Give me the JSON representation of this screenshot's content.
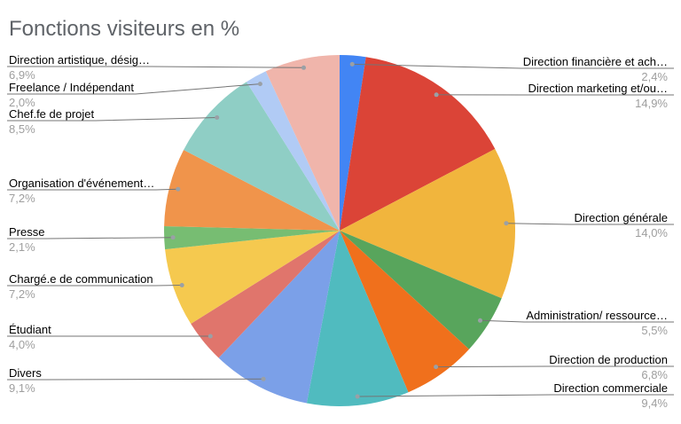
{
  "chart_data": {
    "type": "pie",
    "title": "Fonctions visiteurs en %",
    "unit": "%",
    "legend_position": "outside-callout-labels",
    "background_color": "#FFFFFF",
    "title_color": "#5F6368",
    "label_name_color": "#000000",
    "label_value_color": "#9E9E9E",
    "leader_line_color": "#757575",
    "dot_color": "#9AA0A6",
    "slices": [
      {
        "label": "Direction financière et ach…",
        "value": 2.4,
        "value_display": "2,4%",
        "color": "#4285F4"
      },
      {
        "label": "Direction marketing et/ou…",
        "value": 14.9,
        "value_display": "14,9%",
        "color": "#DB4437"
      },
      {
        "label": "Direction générale",
        "value": 14.0,
        "value_display": "14,0%",
        "color": "#F1B53D"
      },
      {
        "label": "Administration/ ressource…",
        "value": 5.5,
        "value_display": "5,5%",
        "color": "#58A55C"
      },
      {
        "label": "Direction de production",
        "value": 6.8,
        "value_display": "6,8%",
        "color": "#F0701C"
      },
      {
        "label": "Direction commerciale",
        "value": 9.4,
        "value_display": "9,4%",
        "color": "#50BBBF"
      },
      {
        "label": "Divers",
        "value": 9.1,
        "value_display": "9,1%",
        "color": "#7BA0E8"
      },
      {
        "label": "Étudiant",
        "value": 4.0,
        "value_display": "4,0%",
        "color": "#E0756C"
      },
      {
        "label": "Chargé.e de communication",
        "value": 7.2,
        "value_display": "7,2%",
        "color": "#F5C94F"
      },
      {
        "label": "Presse",
        "value": 2.1,
        "value_display": "2,1%",
        "color": "#77BD72"
      },
      {
        "label": "Organisation d'événement…",
        "value": 7.2,
        "value_display": "7,2%",
        "color": "#F0944B"
      },
      {
        "label": "Chef.fe de projet",
        "value": 8.5,
        "value_display": "8,5%",
        "color": "#8FCEC5"
      },
      {
        "label": "Freelance / Indépendant",
        "value": 2.0,
        "value_display": "2,0%",
        "color": "#B1CBF5"
      },
      {
        "label": "Direction artistique, désig…",
        "value": 6.9,
        "value_display": "6,9%",
        "color": "#F0B5AB"
      }
    ]
  }
}
